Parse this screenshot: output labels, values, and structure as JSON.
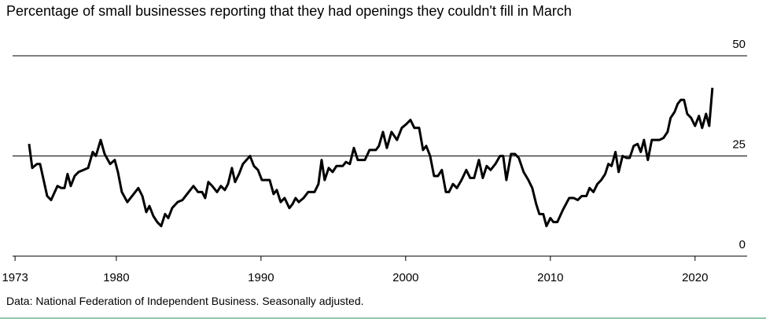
{
  "chart_data": {
    "type": "line",
    "title": "Percentage of small businesses reporting that they had openings they couldn't fill in March",
    "source": "Data: National Federation of Independent Business. Seasonally adjusted.",
    "x": [
      1973.97,
      1974.19,
      1974.51,
      1974.73,
      1975.22,
      1975.49,
      1975.93,
      1976.2,
      1976.42,
      1976.63,
      1976.85,
      1977.12,
      1977.39,
      1977.72,
      1978.05,
      1978.37,
      1978.59,
      1978.92,
      1979.19,
      1979.57,
      1979.89,
      1980.11,
      1980.38,
      1980.76,
      1981.2,
      1981.52,
      1981.8,
      1982.07,
      1982.29,
      1982.56,
      1982.83,
      1983.1,
      1983.37,
      1983.59,
      1983.86,
      1984.24,
      1984.57,
      1985.0,
      1985.33,
      1985.65,
      1985.93,
      1986.14,
      1986.36,
      1986.63,
      1986.96,
      1987.23,
      1987.5,
      1987.72,
      1987.99,
      1988.21,
      1988.48,
      1988.75,
      1989.24,
      1989.51,
      1989.79,
      1990.06,
      1990.6,
      1990.87,
      1991.09,
      1991.36,
      1991.63,
      1991.96,
      1992.18,
      1992.39,
      1992.61,
      1992.94,
      1993.26,
      1993.7,
      1993.97,
      1994.19,
      1994.4,
      1994.68,
      1994.95,
      1995.22,
      1995.65,
      1995.87,
      1996.14,
      1996.42,
      1996.69,
      1997.18,
      1997.5,
      1997.94,
      1998.15,
      1998.43,
      1998.7,
      1999.02,
      1999.4,
      1999.73,
      2000.06,
      2000.33,
      2000.6,
      2000.93,
      2001.2,
      2001.42,
      2001.69,
      2001.96,
      2002.23,
      2002.5,
      2002.78,
      2002.99,
      2003.27,
      2003.54,
      2003.86,
      2004.19,
      2004.46,
      2004.73,
      2005.06,
      2005.33,
      2005.6,
      2005.87,
      2006.2,
      2006.52,
      2006.74,
      2006.96,
      2007.28,
      2007.55,
      2007.82,
      2008.15,
      2008.48,
      2008.75,
      2009.02,
      2009.24,
      2009.51,
      2009.73,
      2010.0,
      2010.21,
      2010.48,
      2010.86,
      2011.3,
      2011.62,
      2011.89,
      2012.17,
      2012.49,
      2012.71,
      2012.98,
      2013.25,
      2013.52,
      2013.79,
      2014.01,
      2014.23,
      2014.5,
      2014.72,
      2014.99,
      2015.27,
      2015.48,
      2015.76,
      2016.03,
      2016.25,
      2016.47,
      2016.74,
      2017.01,
      2017.28,
      2017.55,
      2017.82,
      2018.1,
      2018.31,
      2018.59,
      2018.8,
      2019.02,
      2019.24,
      2019.46,
      2019.73,
      2020.0,
      2020.27,
      2020.49,
      2020.76,
      2020.98,
      2021.2
    ],
    "series": [
      {
        "color": "#000000",
        "values": [
          28,
          22,
          23,
          23,
          15,
          14,
          17.5,
          17,
          17,
          20.5,
          17.5,
          20,
          21,
          21.5,
          22,
          26,
          25,
          29,
          25.5,
          23,
          24,
          21,
          16,
          13.5,
          15.5,
          17,
          15,
          11,
          12.5,
          10,
          8.5,
          7.5,
          10.5,
          9.5,
          12,
          13.5,
          14,
          16,
          17.5,
          16,
          16,
          14.5,
          18.5,
          17.5,
          16,
          17.5,
          16.5,
          18,
          22,
          18.5,
          20.5,
          23,
          25,
          22.5,
          21.5,
          19,
          19,
          15.5,
          16.5,
          13.5,
          14.5,
          12,
          13,
          14.5,
          13.5,
          14.5,
          16,
          16,
          18,
          24,
          19,
          22,
          21,
          22.5,
          22.5,
          23.5,
          23,
          27,
          24,
          24,
          26.5,
          26.5,
          27.5,
          31,
          27,
          31,
          29,
          32,
          33,
          34,
          32,
          32,
          26.5,
          27.5,
          25,
          20,
          20,
          21.5,
          16,
          16,
          18,
          17,
          19,
          21.5,
          19.5,
          19.5,
          24,
          19.5,
          22.5,
          21.5,
          23,
          25,
          25,
          19,
          25.5,
          25.5,
          24.5,
          21,
          19,
          17,
          13,
          10.5,
          10.5,
          7.5,
          9.5,
          8.5,
          8.5,
          11.5,
          14.5,
          14.5,
          14,
          15,
          15,
          17,
          16,
          18,
          19,
          20.5,
          23,
          22.5,
          26,
          21,
          25,
          24.5,
          24.5,
          27.5,
          28,
          26,
          29,
          24,
          29,
          29,
          29,
          29.5,
          31,
          34.5,
          36,
          38,
          39,
          39,
          35.5,
          34.5,
          32.5,
          35,
          32,
          35.5,
          32.5,
          42
        ]
      }
    ],
    "xlim": [
      1972.83,
      2023.6
    ],
    "xticks": [
      1973,
      1980,
      1990,
      2000,
      2010,
      2020
    ],
    "ylim": [
      0,
      50
    ],
    "yticks": [
      0,
      25,
      50
    ],
    "grid": true
  }
}
